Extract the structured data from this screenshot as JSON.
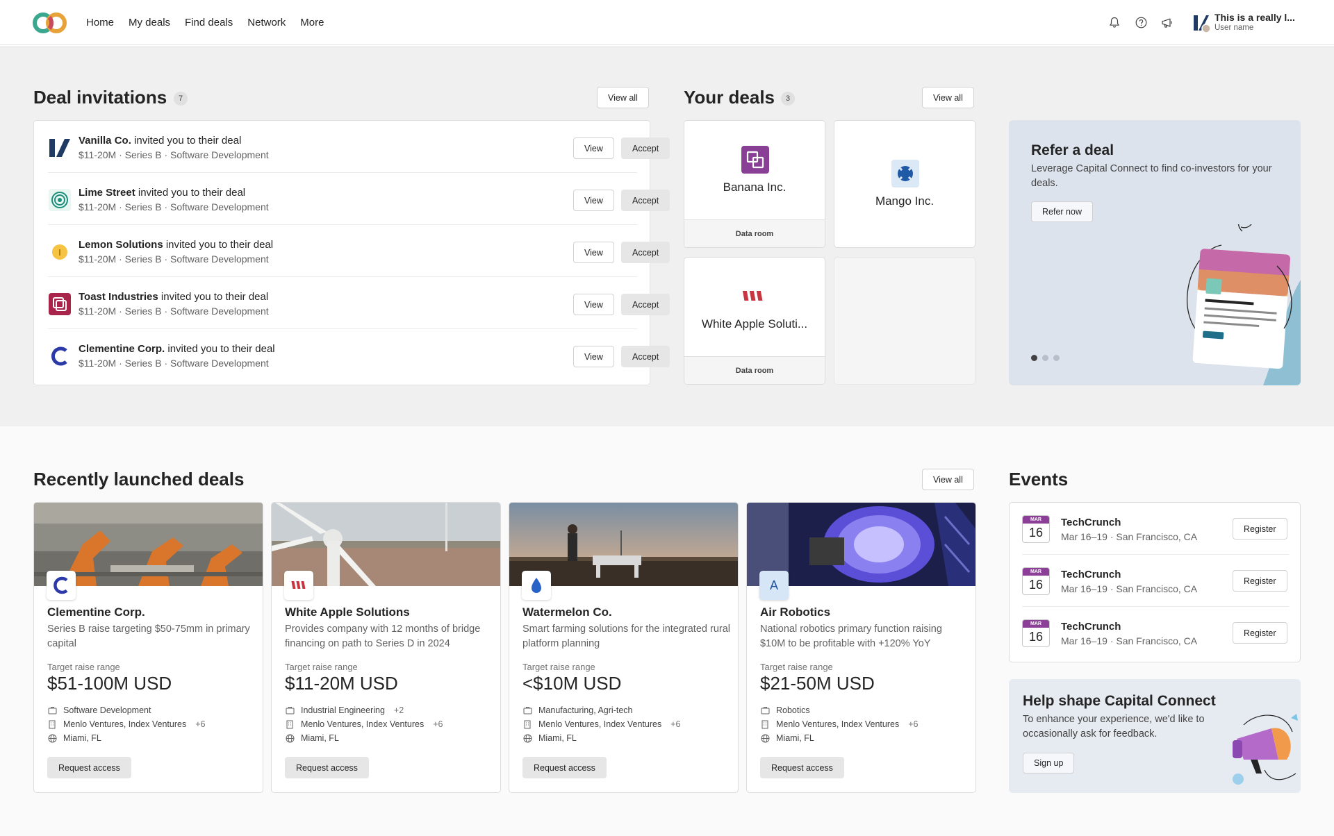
{
  "nav": {
    "items": [
      "Home",
      "My deals",
      "Find deals",
      "Network",
      "More"
    ],
    "user_name": "This is a really l...",
    "user_sub": "User name"
  },
  "invitations": {
    "title": "Deal invitations",
    "count": "7",
    "view_all": "View all",
    "invited_text": "invited you to their deal",
    "view_label": "View",
    "accept_label": "Accept",
    "items": [
      {
        "company": "Vanilla Co.",
        "meta": "$11-20M · Series B · Software Development"
      },
      {
        "company": "Lime Street",
        "meta": "$11-20M · Series B · Software Development"
      },
      {
        "company": "Lemon Solutions",
        "meta": "$11-20M · Series B · Software Development"
      },
      {
        "company": "Toast Industries",
        "meta": "$11-20M · Series B · Software Development"
      },
      {
        "company": "Clementine Corp.",
        "meta": "$11-20M · Series B · Software Development"
      }
    ]
  },
  "your_deals": {
    "title": "Your deals",
    "count": "3",
    "view_all": "View all",
    "data_room": "Data room",
    "items": [
      {
        "name": "Banana Inc."
      },
      {
        "name": "Mango Inc."
      },
      {
        "name": "White Apple Soluti..."
      }
    ]
  },
  "refer": {
    "title": "Refer a deal",
    "desc": "Leverage Capital Connect to find co-investors for your deals.",
    "button": "Refer now"
  },
  "recent": {
    "title": "Recently launched deals",
    "view_all": "View all",
    "target_label": "Target raise range",
    "request_label": "Request access",
    "items": [
      {
        "name": "Clementine Corp.",
        "desc": "Series B raise targeting $50-75mm in primary capital",
        "target": "$51-100M USD",
        "industry": "Software Development",
        "industry_more": "",
        "investors": "Menlo Ventures, Index Ventures",
        "investors_more": "+6",
        "location": "Miami, FL"
      },
      {
        "name": "White Apple Solutions",
        "desc": "Provides company with 12 months of bridge financing on path to Series D in 2024",
        "target": "$11-20M USD",
        "industry": "Industrial Engineering",
        "industry_more": "+2",
        "investors": "Menlo Ventures, Index Ventures",
        "investors_more": "+6",
        "location": "Miami, FL"
      },
      {
        "name": "Watermelon Co.",
        "desc": "Smart farming solutions for the integrated rural platform planning",
        "target": "<$10M USD",
        "industry": "Manufacturing, Agri-tech",
        "industry_more": "",
        "investors": "Menlo Ventures, Index Ventures",
        "investors_more": "+6",
        "location": "Miami, FL"
      },
      {
        "name": "Air Robotics",
        "desc": "National robotics primary function raising $10M to be profitable with +120% YoY",
        "target": "$21-50M USD",
        "industry": "Robotics",
        "industry_more": "",
        "investors": "Menlo Ventures, Index Ventures",
        "investors_more": "+6",
        "location": "Miami, FL"
      }
    ]
  },
  "events": {
    "title": "Events",
    "register_label": "Register",
    "items": [
      {
        "month": "MAR",
        "day": "16",
        "name": "TechCrunch",
        "detail": "Mar 16–19 · San Francisco, CA"
      },
      {
        "month": "MAR",
        "day": "16",
        "name": "TechCrunch",
        "detail": "Mar 16–19 · San Francisco, CA"
      },
      {
        "month": "MAR",
        "day": "16",
        "name": "TechCrunch",
        "detail": "Mar 16–19 · San Francisco, CA"
      }
    ]
  },
  "help": {
    "title": "Help shape Capital Connect",
    "desc": "To enhance your experience, we'd like to occasionally ask for feedback.",
    "button": "Sign up"
  },
  "colors": {
    "accent_purple": "#8b3f96",
    "page_bg": "#f0f0f0",
    "refer_bg": "#dde3ec"
  }
}
